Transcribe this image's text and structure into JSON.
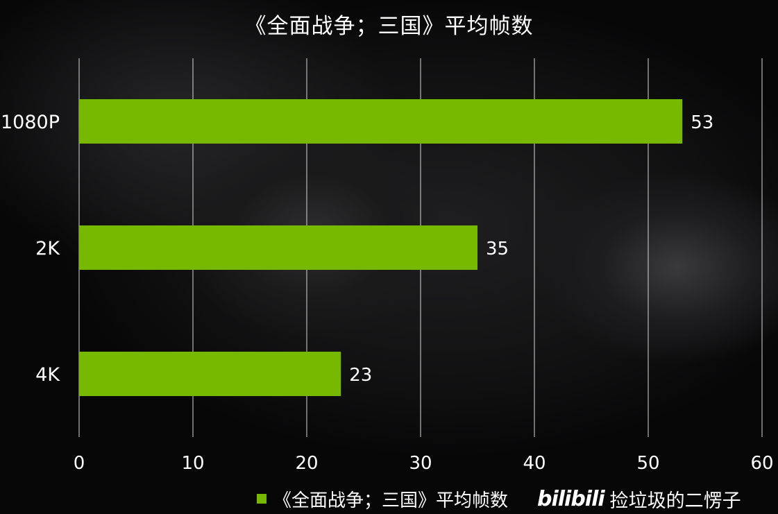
{
  "chart_data": {
    "type": "bar",
    "orientation": "horizontal",
    "title": "《全面战争；三国》平均帧数",
    "categories": [
      "1080P",
      "2K",
      "4K"
    ],
    "series": [
      {
        "name": "《全面战争；三国》平均帧数",
        "values": [
          53,
          35,
          23
        ],
        "color": "#77b900"
      }
    ],
    "xlim": [
      0,
      60
    ],
    "x_ticks": [
      0,
      10,
      20,
      30,
      40,
      50,
      60
    ],
    "grid": "vertical",
    "legend_position": "bottom",
    "data_labels": true
  },
  "watermark": {
    "logo": "bilibili",
    "text": "捡垃圾的二愣子"
  }
}
